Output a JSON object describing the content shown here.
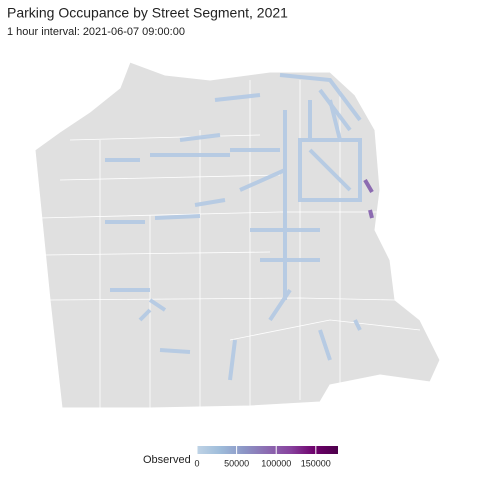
{
  "title": "Parking Occupance by Street Segment, 2021",
  "subtitle": "1 hour interval: 2021-06-07 09:00:00",
  "legend": {
    "title": "Observed",
    "lim": [
      0,
      178000
    ],
    "ticks": [
      0,
      50000,
      100000,
      150000
    ],
    "colors": [
      "#bfd3e6",
      "#9ebcda",
      "#8c96c6",
      "#8c6bb1",
      "#88419d",
      "#6e016b",
      "#4d004b"
    ]
  }
}
